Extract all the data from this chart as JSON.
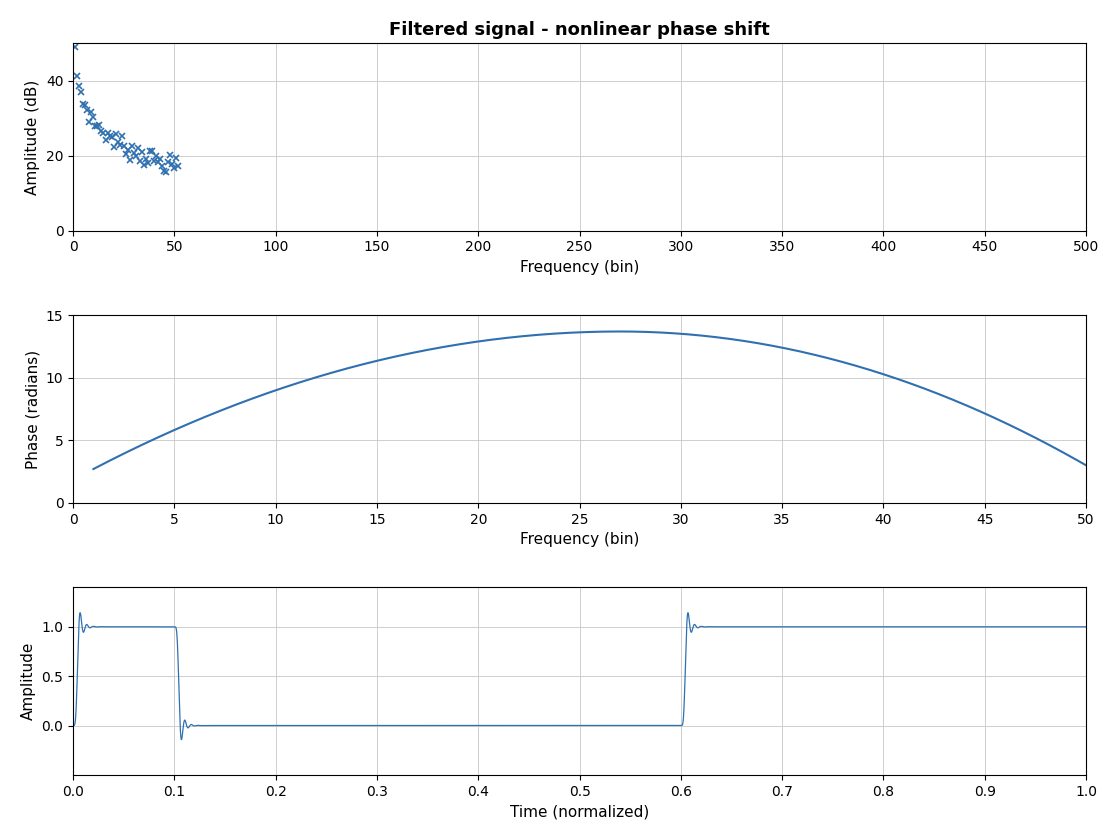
{
  "title": "Filtered signal - nonlinear phase shift",
  "title_fontsize": 13,
  "line_color": "#3070b0",
  "background_color": "#ffffff",
  "subplot1": {
    "xlabel": "Frequency (bin)",
    "ylabel": "Amplitude (dB)",
    "xlim": [
      0,
      500
    ],
    "ylim": [
      0,
      50
    ],
    "xticks": [
      0,
      50,
      100,
      150,
      200,
      250,
      300,
      350,
      400,
      450,
      500
    ],
    "yticks": [
      0,
      20,
      40
    ]
  },
  "subplot2": {
    "xlabel": "Frequency (bin)",
    "ylabel": "Phase (radians)",
    "xlim": [
      0,
      50
    ],
    "ylim": [
      0,
      15
    ],
    "xticks": [
      0,
      5,
      10,
      15,
      20,
      25,
      30,
      35,
      40,
      45,
      50
    ],
    "yticks": [
      0,
      5,
      10,
      15
    ]
  },
  "subplot3": {
    "xlabel": "Time (normalized)",
    "ylabel": "Amplitude",
    "xlim": [
      0,
      1
    ],
    "ylim": [
      -0.5,
      1.4
    ],
    "xticks": [
      0,
      0.1,
      0.2,
      0.3,
      0.4,
      0.5,
      0.6,
      0.7,
      0.8,
      0.9,
      1.0
    ],
    "yticks": [
      0,
      0.5,
      1
    ]
  }
}
